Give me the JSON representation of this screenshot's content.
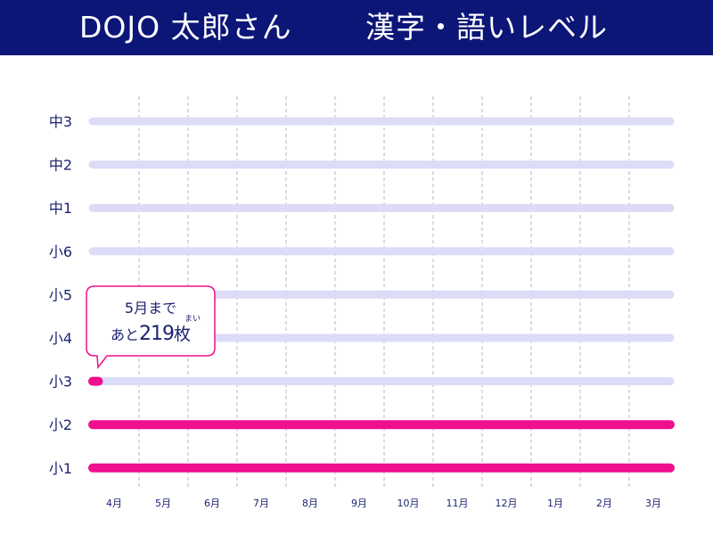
{
  "header": {
    "name": "DOJO 太郎さん",
    "title": "漢字・語いレベル"
  },
  "callout": {
    "line1": "5月まで",
    "prefix": "あと",
    "number": "219",
    "unit": "枚",
    "ruby": "まい"
  },
  "colors": {
    "header_bg": "#0c1677",
    "track": "#dcdcf8",
    "progress": "#f00f8c",
    "label": "#1d2371",
    "gridline": "#b6b6d6"
  },
  "chart_data": {
    "type": "bar",
    "orientation": "horizontal",
    "categories": [
      "中3",
      "中2",
      "中1",
      "小6",
      "小5",
      "小4",
      "小3",
      "小2",
      "小1"
    ],
    "months": [
      "4月",
      "5月",
      "6月",
      "7月",
      "8月",
      "9月",
      "10月",
      "11月",
      "12月",
      "1月",
      "2月",
      "3月"
    ],
    "values": [
      0,
      0,
      0,
      0,
      0,
      0,
      0.01,
      1,
      1
    ],
    "value_unit": "fraction of level completed",
    "grid": "dashed vertical lines between months"
  }
}
